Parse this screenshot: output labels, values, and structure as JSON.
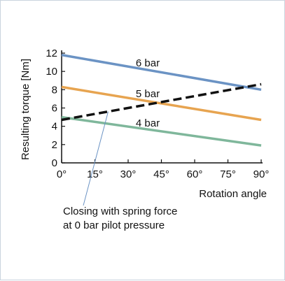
{
  "chart_data": {
    "type": "line",
    "title": "",
    "xlabel": "Rotation angle",
    "ylabel": "Resulting torque [Nm]",
    "x_ticks": [
      "0°",
      "15°",
      "30°",
      "45°",
      "60°",
      "75°",
      "90°"
    ],
    "x_tick_values": [
      0,
      15,
      30,
      45,
      60,
      75,
      90
    ],
    "y_ticks": [
      "0",
      "2",
      "4",
      "6",
      "8",
      "10",
      "12"
    ],
    "y_tick_values": [
      0,
      2,
      4,
      6,
      8,
      10,
      12
    ],
    "xlim": [
      0,
      90
    ],
    "ylim": [
      0,
      12
    ],
    "grid": false,
    "series": [
      {
        "name": "6 bar",
        "color": "#6b93c4",
        "dash": false,
        "x": [
          0,
          90
        ],
        "y": [
          11.8,
          8.0
        ]
      },
      {
        "name": "5 bar",
        "color": "#e7a450",
        "dash": false,
        "x": [
          0,
          90
        ],
        "y": [
          8.3,
          4.7
        ]
      },
      {
        "name": "4 bar",
        "color": "#7fb79b",
        "dash": false,
        "x": [
          0,
          90
        ],
        "y": [
          5.0,
          1.9
        ]
      },
      {
        "name": "",
        "color": "#111111",
        "dash": true,
        "x": [
          0,
          90
        ],
        "y": [
          4.7,
          8.6
        ]
      }
    ],
    "series_labels": [
      "6 bar",
      "5 bar",
      "4 bar"
    ],
    "annotation": {
      "lines": [
        "Closing with spring force",
        "at 0 bar pilot pressure"
      ],
      "pointer_color": "#6b93c4",
      "points_to_x": 21
    }
  }
}
